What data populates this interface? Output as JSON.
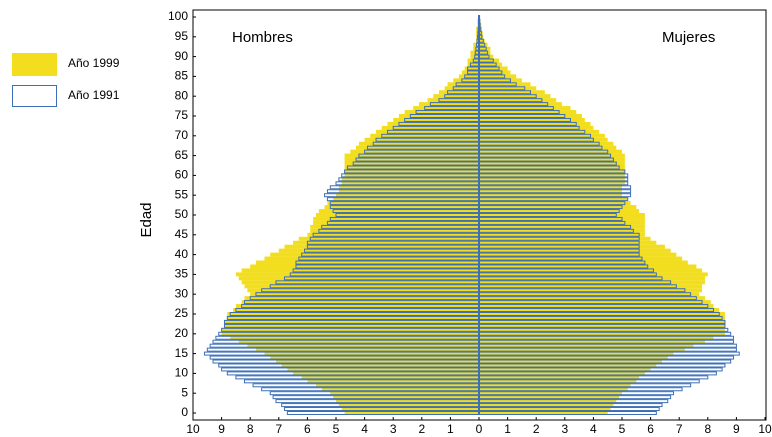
{
  "chart_data": {
    "type": "pyramid",
    "y_label": "Edad",
    "annotations": [
      "Hombres",
      "Mujeres"
    ],
    "categories": [
      0,
      1,
      2,
      3,
      4,
      5,
      6,
      7,
      8,
      9,
      10,
      11,
      12,
      13,
      14,
      15,
      16,
      17,
      18,
      19,
      20,
      21,
      22,
      23,
      24,
      25,
      26,
      27,
      28,
      29,
      30,
      31,
      32,
      33,
      34,
      35,
      36,
      37,
      38,
      39,
      40,
      41,
      42,
      43,
      44,
      45,
      46,
      47,
      48,
      49,
      50,
      51,
      52,
      53,
      54,
      55,
      56,
      57,
      58,
      59,
      60,
      61,
      62,
      63,
      64,
      65,
      66,
      67,
      68,
      69,
      70,
      71,
      72,
      73,
      74,
      75,
      76,
      77,
      78,
      79,
      80,
      81,
      82,
      83,
      84,
      85,
      86,
      87,
      88,
      89,
      90,
      91,
      92,
      93,
      94,
      95,
      96,
      97,
      98,
      99,
      100
    ],
    "series": [
      {
        "name": "Año 1999",
        "color": "#f2de1f",
        "fill": true,
        "men": [
          -4.7,
          -4.8,
          -4.9,
          -5.0,
          -5.1,
          -5.2,
          -5.5,
          -5.7,
          -6.0,
          -6.2,
          -6.5,
          -6.7,
          -6.9,
          -7.1,
          -7.3,
          -7.5,
          -7.8,
          -8.1,
          -8.4,
          -8.7,
          -9.0,
          -9.0,
          -8.9,
          -8.9,
          -8.8,
          -8.8,
          -8.6,
          -8.5,
          -8.3,
          -8.2,
          -8.0,
          -8.1,
          -8.2,
          -8.3,
          -8.4,
          -8.5,
          -8.3,
          -8.0,
          -7.8,
          -7.5,
          -7.3,
          -7.0,
          -6.8,
          -6.5,
          -6.3,
          -6.0,
          -5.9,
          -5.9,
          -5.8,
          -5.8,
          -5.7,
          -5.6,
          -5.4,
          -5.3,
          -5.1,
          -5.0,
          -4.9,
          -4.9,
          -4.8,
          -4.8,
          -4.7,
          -4.7,
          -4.7,
          -4.7,
          -4.7,
          -4.7,
          -4.5,
          -4.3,
          -4.2,
          -4.0,
          -3.8,
          -3.6,
          -3.4,
          -3.2,
          -3.0,
          -2.8,
          -2.6,
          -2.3,
          -2.1,
          -1.8,
          -1.6,
          -1.4,
          -1.2,
          -1.1,
          -0.9,
          -0.7,
          -0.6,
          -0.5,
          -0.4,
          -0.4,
          -0.3,
          -0.3,
          -0.2,
          -0.2,
          -0.1,
          -0.1,
          -0.1,
          -0.1,
          -0.05,
          -0.05,
          -0.02
        ],
        "women": [
          4.5,
          4.6,
          4.7,
          4.8,
          4.9,
          5.0,
          5.2,
          5.3,
          5.5,
          5.6,
          5.8,
          6.0,
          6.2,
          6.4,
          6.6,
          6.8,
          7.2,
          7.5,
          7.9,
          8.2,
          8.6,
          8.6,
          8.6,
          8.6,
          8.6,
          8.6,
          8.4,
          8.2,
          8.1,
          7.9,
          7.7,
          7.8,
          7.8,
          7.9,
          7.9,
          8.0,
          7.8,
          7.6,
          7.3,
          7.1,
          6.9,
          6.7,
          6.5,
          6.2,
          6.0,
          5.8,
          5.8,
          5.8,
          5.8,
          5.8,
          5.8,
          5.6,
          5.5,
          5.3,
          5.2,
          5.0,
          5.0,
          5.0,
          5.1,
          5.1,
          5.1,
          5.1,
          5.1,
          5.1,
          5.1,
          5.1,
          5.0,
          4.8,
          4.7,
          4.5,
          4.4,
          4.2,
          4.0,
          3.9,
          3.7,
          3.6,
          3.4,
          3.2,
          2.9,
          2.7,
          2.5,
          2.3,
          2.0,
          1.8,
          1.5,
          1.3,
          1.1,
          1.0,
          0.8,
          0.7,
          0.5,
          0.4,
          0.4,
          0.3,
          0.2,
          0.15,
          0.13,
          0.1,
          0.08,
          0.05,
          0.03
        ]
      },
      {
        "name": "Año 1991",
        "color": "#3d6fb6",
        "fill": false,
        "men": [
          -6.7,
          -6.8,
          -6.9,
          -7.1,
          -7.2,
          -7.3,
          -7.6,
          -7.9,
          -8.2,
          -8.5,
          -8.8,
          -9.0,
          -9.1,
          -9.3,
          -9.4,
          -9.6,
          -9.5,
          -9.4,
          -9.3,
          -9.2,
          -9.1,
          -9.0,
          -8.9,
          -8.9,
          -8.8,
          -8.7,
          -8.5,
          -8.3,
          -8.2,
          -8.0,
          -7.8,
          -7.6,
          -7.3,
          -7.1,
          -6.8,
          -6.6,
          -6.5,
          -6.4,
          -6.4,
          -6.3,
          -6.2,
          -6.1,
          -6.0,
          -6.0,
          -5.9,
          -5.8,
          -5.6,
          -5.5,
          -5.3,
          -5.2,
          -5.0,
          -5.1,
          -5.2,
          -5.2,
          -5.3,
          -5.4,
          -5.3,
          -5.2,
          -5.0,
          -4.9,
          -4.8,
          -4.7,
          -4.6,
          -4.4,
          -4.3,
          -4.2,
          -4.0,
          -3.9,
          -3.7,
          -3.6,
          -3.4,
          -3.2,
          -3.0,
          -2.8,
          -2.6,
          -2.4,
          -2.2,
          -1.9,
          -1.7,
          -1.4,
          -1.2,
          -1.1,
          -0.9,
          -0.8,
          -0.6,
          -0.5,
          -0.4,
          -0.4,
          -0.3,
          -0.2,
          -0.15,
          -0.13,
          -0.11,
          -0.09,
          -0.07,
          -0.05,
          -0.04,
          -0.03,
          -0.02,
          -0.02,
          -0.01
        ],
        "women": [
          6.2,
          6.3,
          6.4,
          6.6,
          6.7,
          6.8,
          7.1,
          7.4,
          7.7,
          8.0,
          8.3,
          8.5,
          8.6,
          8.8,
          8.9,
          9.1,
          9.0,
          9.0,
          8.9,
          8.9,
          8.8,
          8.7,
          8.6,
          8.6,
          8.5,
          8.4,
          8.2,
          8.0,
          7.8,
          7.6,
          7.4,
          7.2,
          6.9,
          6.7,
          6.4,
          6.2,
          6.1,
          5.9,
          5.8,
          5.7,
          5.6,
          5.6,
          5.6,
          5.6,
          5.6,
          5.6,
          5.4,
          5.3,
          5.1,
          5.0,
          4.8,
          4.9,
          5.0,
          5.1,
          5.2,
          5.3,
          5.3,
          5.3,
          5.2,
          5.2,
          5.2,
          5.1,
          4.9,
          4.8,
          4.7,
          4.6,
          4.5,
          4.3,
          4.2,
          4.0,
          3.9,
          3.7,
          3.5,
          3.4,
          3.2,
          3.0,
          2.8,
          2.6,
          2.4,
          2.2,
          2.0,
          1.8,
          1.6,
          1.3,
          1.1,
          0.9,
          0.8,
          0.7,
          0.6,
          0.5,
          0.35,
          0.3,
          0.25,
          0.2,
          0.15,
          0.1,
          0.08,
          0.06,
          0.04,
          0.03,
          0.02
        ]
      }
    ],
    "xlim": [
      -10,
      10
    ],
    "xticks": [
      {
        "value": -10,
        "label": "10"
      },
      {
        "value": -9,
        "label": "9"
      },
      {
        "value": -8,
        "label": "8"
      },
      {
        "value": -7,
        "label": "7"
      },
      {
        "value": -6,
        "label": "6"
      },
      {
        "value": -5,
        "label": "5"
      },
      {
        "value": -4,
        "label": "4"
      },
      {
        "value": -3,
        "label": "3"
      },
      {
        "value": -2,
        "label": "2"
      },
      {
        "value": -1,
        "label": "1"
      },
      0,
      1,
      2,
      3,
      4,
      5,
      6,
      7,
      8,
      9,
      10
    ],
    "ylim": [
      0,
      100
    ],
    "yticks": [
      0,
      5,
      10,
      15,
      20,
      25,
      30,
      35,
      40,
      45,
      50,
      55,
      60,
      65,
      70,
      75,
      80,
      85,
      90,
      95,
      100
    ]
  }
}
